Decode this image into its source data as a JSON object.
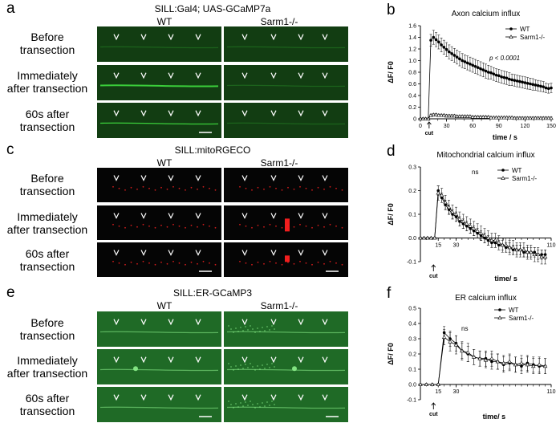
{
  "panels": {
    "a": {
      "letter": "a",
      "construct": "SILL:Gal4; UAS-GCaMP7a",
      "col_labels": [
        "WT",
        "Sarm1-/-"
      ],
      "rows": [
        "Before\ntransection",
        "Immediately\nafter transection",
        "60s after\ntransection"
      ],
      "bg_color": "#123d12",
      "signal_color": "#3dd63d"
    },
    "c": {
      "letter": "c",
      "construct": "SILL:mitoRGECO",
      "col_labels": [
        "WT",
        "Sarm1-/-"
      ],
      "rows": [
        "Before\ntransection",
        "Immediately\nafter transection",
        "60s after\ntransection"
      ],
      "bg_color": "#050505",
      "signal_color": "#ff2020"
    },
    "e": {
      "letter": "e",
      "construct": "SILL:ER-GCaMP3",
      "col_labels": [
        "WT",
        "Sarm1-/-"
      ],
      "rows": [
        "Before\ntransection",
        "Immediately\nafter transection",
        "60s after\ntransection"
      ],
      "bg_color": "#1f6a26",
      "signal_color": "#8cf08c"
    }
  },
  "chart_data": [
    {
      "letter": "b",
      "type": "line",
      "title": "Axon calcium influx",
      "xlabel": "time / s",
      "ylabel": "ΔF/ F0",
      "xlim": [
        0,
        150
      ],
      "ylim": [
        0,
        1.6
      ],
      "xticks": [
        0,
        30,
        60,
        90,
        120,
        150
      ],
      "yticks": [
        0,
        0.2,
        0.4,
        0.6,
        0.8,
        1.0,
        1.2,
        1.4,
        1.6
      ],
      "ytick_labels": [
        "0",
        "0.2",
        "0.4",
        "0.6",
        "0.8",
        "1.0",
        "1.2",
        "1.4",
        "1.6"
      ],
      "annotation": "p < 0.0001",
      "cut_label": "cut",
      "cut_x": 10,
      "legend_position": "top-right",
      "series": [
        {
          "name": "WT",
          "marker": "circle",
          "x": [
            0,
            3,
            6,
            9,
            12,
            15,
            18,
            21,
            24,
            27,
            30,
            33,
            36,
            39,
            42,
            45,
            48,
            51,
            54,
            57,
            60,
            63,
            66,
            69,
            72,
            75,
            78,
            81,
            84,
            87,
            90,
            93,
            96,
            99,
            102,
            105,
            108,
            111,
            114,
            117,
            120,
            123,
            126,
            129,
            132,
            135,
            138,
            141,
            144,
            147,
            150
          ],
          "y": [
            0,
            0,
            0,
            0,
            1.35,
            1.4,
            1.36,
            1.32,
            1.27,
            1.23,
            1.19,
            1.15,
            1.12,
            1.09,
            1.06,
            1.03,
            1.0,
            0.98,
            0.96,
            0.94,
            0.92,
            0.9,
            0.88,
            0.86,
            0.84,
            0.82,
            0.8,
            0.79,
            0.77,
            0.75,
            0.74,
            0.72,
            0.71,
            0.7,
            0.68,
            0.67,
            0.66,
            0.65,
            0.64,
            0.63,
            0.62,
            0.61,
            0.6,
            0.59,
            0.58,
            0.57,
            0.56,
            0.55,
            0.53,
            0.52,
            0.53
          ],
          "err": [
            0,
            0,
            0,
            0,
            0.1,
            0.12,
            0.12,
            0.12,
            0.12,
            0.12,
            0.12,
            0.12,
            0.12,
            0.12,
            0.12,
            0.12,
            0.12,
            0.12,
            0.12,
            0.12,
            0.12,
            0.12,
            0.12,
            0.12,
            0.12,
            0.12,
            0.12,
            0.11,
            0.11,
            0.11,
            0.11,
            0.11,
            0.11,
            0.11,
            0.11,
            0.1,
            0.1,
            0.1,
            0.1,
            0.1,
            0.1,
            0.1,
            0.1,
            0.1,
            0.09,
            0.09,
            0.09,
            0.09,
            0.08,
            0.08,
            0.08
          ]
        },
        {
          "name": "Sarm1-/-",
          "marker": "triangle",
          "x": [
            0,
            3,
            6,
            9,
            12,
            15,
            18,
            21,
            24,
            27,
            30,
            33,
            36,
            39,
            42,
            45,
            48,
            51,
            54,
            57,
            60,
            63,
            66,
            69,
            72,
            75,
            78,
            81,
            84,
            87,
            90,
            93,
            96,
            99,
            102,
            105,
            108,
            111,
            114,
            117,
            120,
            123,
            126,
            129,
            132,
            135,
            138,
            141,
            144,
            147,
            150
          ],
          "y": [
            0,
            0,
            0,
            0,
            0.06,
            0.07,
            0.07,
            0.06,
            0.06,
            0.06,
            0.05,
            0.05,
            0.05,
            0.05,
            0.04,
            0.04,
            0.04,
            0.04,
            0.04,
            0.04,
            0.03,
            0.03,
            0.03,
            0.03,
            0.03,
            0.03,
            0.03,
            0.02,
            0.02,
            0.02,
            0.02,
            0.02,
            0.02,
            0.02,
            0.02,
            0.02,
            0.01,
            0.01,
            0.01,
            0.01,
            0.01,
            0.01,
            0.01,
            0.01,
            0.01,
            0.01,
            0.01,
            0.01,
            0.01,
            0.01,
            0.01
          ],
          "err": [
            0,
            0,
            0,
            0,
            0.02,
            0.02,
            0.02,
            0.02,
            0.02,
            0.02,
            0.02,
            0.02,
            0.02,
            0.02,
            0.02,
            0.02,
            0.02,
            0.02,
            0.02,
            0.02,
            0.02,
            0.02,
            0.02,
            0.02,
            0.02,
            0.02,
            0.02,
            0.02,
            0.02,
            0.02,
            0.02,
            0.02,
            0.02,
            0.02,
            0.02,
            0.02,
            0.02,
            0.02,
            0.02,
            0.02,
            0.02,
            0.02,
            0.02,
            0.02,
            0.02,
            0.02,
            0.02,
            0.02,
            0.02,
            0.02,
            0.02
          ]
        }
      ]
    },
    {
      "letter": "d",
      "type": "line",
      "title": "Mitochondrial calcium influx",
      "xlabel": "time/ s",
      "ylabel": "ΔF/ F0",
      "xlim": [
        0,
        110
      ],
      "ylim": [
        -0.1,
        0.3
      ],
      "xticks": [
        15,
        30,
        110
      ],
      "yticks": [
        -0.1,
        0,
        0.1,
        0.2,
        0.3
      ],
      "ytick_labels": [
        "-0.1",
        "0.0",
        "0.1",
        "0.2",
        "0.3"
      ],
      "annotation": "ns",
      "cut_label": "cut",
      "cut_x": 11,
      "legend_position": "top-right",
      "series": [
        {
          "name": "WT",
          "marker": "circle",
          "x": [
            0,
            3,
            6,
            9,
            12,
            15,
            18,
            21,
            24,
            27,
            30,
            33,
            36,
            39,
            42,
            45,
            48,
            51,
            54,
            57,
            60,
            63,
            66,
            69,
            72,
            75,
            78,
            81,
            84,
            87,
            90,
            93,
            96,
            99,
            102,
            105
          ],
          "y": [
            0,
            0,
            0,
            0,
            0,
            0.2,
            0.17,
            0.14,
            0.12,
            0.1,
            0.09,
            0.07,
            0.06,
            0.05,
            0.04,
            0.03,
            0.02,
            0.01,
            0.0,
            -0.01,
            -0.02,
            -0.02,
            -0.03,
            -0.03,
            -0.04,
            -0.04,
            -0.05,
            -0.05,
            -0.05,
            -0.06,
            -0.06,
            -0.06,
            -0.06,
            -0.07,
            -0.07,
            -0.07
          ],
          "err": [
            0,
            0,
            0,
            0,
            0,
            0.02,
            0.02,
            0.02,
            0.02,
            0.02,
            0.02,
            0.02,
            0.02,
            0.02,
            0.02,
            0.02,
            0.02,
            0.02,
            0.02,
            0.02,
            0.02,
            0.02,
            0.02,
            0.02,
            0.02,
            0.02,
            0.02,
            0.02,
            0.02,
            0.02,
            0.02,
            0.02,
            0.02,
            0.02,
            0.02,
            0.02
          ]
        },
        {
          "name": "Sarm1-/-",
          "marker": "triangle",
          "x": [
            0,
            3,
            6,
            9,
            12,
            15,
            18,
            21,
            24,
            27,
            30,
            33,
            36,
            39,
            42,
            45,
            48,
            51,
            54,
            57,
            60,
            63,
            66,
            69,
            72,
            75,
            78,
            81,
            84,
            87,
            90,
            93,
            96,
            99,
            102,
            105
          ],
          "y": [
            0,
            0,
            0,
            0,
            0,
            0.19,
            0.18,
            0.15,
            0.13,
            0.11,
            0.1,
            0.08,
            0.07,
            0.06,
            0.05,
            0.04,
            0.03,
            0.02,
            0.01,
            0.0,
            -0.01,
            -0.01,
            -0.02,
            -0.03,
            -0.03,
            -0.04,
            -0.04,
            -0.05,
            -0.05,
            -0.05,
            -0.06,
            -0.06,
            -0.07,
            -0.07,
            -0.08,
            -0.08
          ],
          "err": [
            0,
            0,
            0,
            0,
            0,
            0.03,
            0.03,
            0.03,
            0.03,
            0.03,
            0.03,
            0.03,
            0.03,
            0.03,
            0.03,
            0.03,
            0.03,
            0.03,
            0.03,
            0.03,
            0.03,
            0.03,
            0.03,
            0.03,
            0.03,
            0.03,
            0.03,
            0.03,
            0.03,
            0.03,
            0.03,
            0.03,
            0.03,
            0.03,
            0.03,
            0.03
          ]
        }
      ]
    },
    {
      "letter": "f",
      "type": "line",
      "title": "ER calcium influx",
      "xlabel": "time/ s",
      "ylabel": "ΔF/ F0",
      "xlim": [
        0,
        110
      ],
      "ylim": [
        -0.1,
        0.5
      ],
      "xticks": [
        15,
        30,
        110
      ],
      "yticks": [
        -0.1,
        0,
        0.1,
        0.2,
        0.3,
        0.4,
        0.5
      ],
      "ytick_labels": [
        "-0.1",
        "0.0",
        "0.1",
        "0.2",
        "0.3",
        "0.4",
        "0.5"
      ],
      "annotation": "ns",
      "cut_label": "cut",
      "cut_x": 11,
      "legend_position": "top-right",
      "series": [
        {
          "name": "WT",
          "marker": "circle",
          "x": [
            0,
            5,
            10,
            15,
            20,
            25,
            30,
            35,
            40,
            45,
            50,
            55,
            60,
            65,
            70,
            75,
            80,
            85,
            90,
            95,
            100,
            105
          ],
          "y": [
            0,
            0,
            0,
            0,
            0.34,
            0.3,
            0.27,
            0.22,
            0.2,
            0.18,
            0.17,
            0.17,
            0.15,
            0.15,
            0.13,
            0.14,
            0.13,
            0.12,
            0.14,
            0.13,
            0.12,
            0.12
          ],
          "err": [
            0,
            0,
            0,
            0,
            0.04,
            0.05,
            0.05,
            0.05,
            0.05,
            0.05,
            0.05,
            0.05,
            0.05,
            0.05,
            0.05,
            0.05,
            0.05,
            0.05,
            0.05,
            0.05,
            0.05,
            0.05
          ]
        },
        {
          "name": "Sarm1-/-",
          "marker": "triangle",
          "x": [
            0,
            5,
            10,
            15,
            20,
            25,
            30,
            35,
            40,
            45,
            50,
            55,
            60,
            65,
            70,
            75,
            80,
            85,
            90,
            95,
            100,
            105
          ],
          "y": [
            0,
            0,
            0,
            0,
            0.31,
            0.28,
            0.26,
            0.22,
            0.21,
            0.18,
            0.17,
            0.16,
            0.17,
            0.15,
            0.14,
            0.15,
            0.13,
            0.14,
            0.13,
            0.12,
            0.13,
            0.12
          ],
          "err": [
            0,
            0,
            0,
            0,
            0.05,
            0.06,
            0.06,
            0.06,
            0.06,
            0.05,
            0.05,
            0.05,
            0.05,
            0.05,
            0.05,
            0.05,
            0.05,
            0.05,
            0.05,
            0.05,
            0.05,
            0.05
          ]
        }
      ]
    }
  ]
}
